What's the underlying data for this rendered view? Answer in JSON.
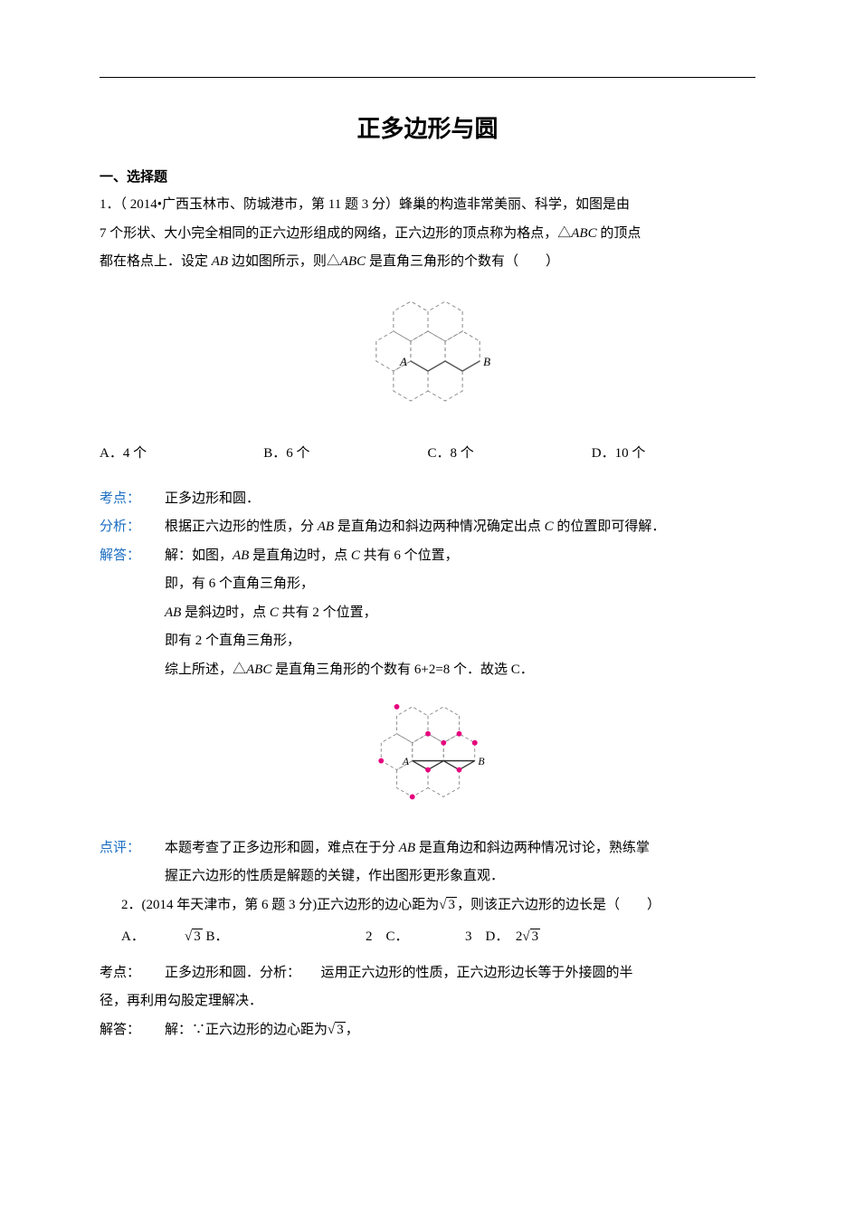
{
  "title": "正多边形与圆",
  "section_head": "一、选择题",
  "q1": {
    "line1": "1．（ 2014•广西玉林市、防城港市，第 11 题 3 分）蜂巢的构造非常美丽、科学，如图是由",
    "line2_a": "7 个形状、大小完全相同的正六边形组成的网络，正六边形的顶点称为格点，△",
    "line2_b": "ABC",
    "line2_c": " 的顶点",
    "line3_a": "都在格点上．设定 ",
    "line3_b": "AB",
    "line3_c": " 边如图所示，则△",
    "line3_d": "ABC",
    "line3_e": " 是直角三角形的个数有（　　）",
    "opts": {
      "A": "A．4 个",
      "B": "B．6 个",
      "C": "C．8 个",
      "D": "D．10 个"
    }
  },
  "q1_sol": {
    "kd_label": "考点：",
    "kd_text": "正多边形和圆．",
    "fx_label": "分析：",
    "fx_a": "根据正六边形的性质，分 ",
    "fx_b": "AB",
    "fx_c": " 是直角边和斜边两种情况确定出点 ",
    "fx_d": "C",
    "fx_e": " 的位置即可得解．",
    "jd_label": "解答：",
    "jd1_a": "解：如图，",
    "jd1_b": "AB",
    "jd1_c": " 是直角边时，点 ",
    "jd1_d": "C",
    "jd1_e": " 共有 6 个位置，",
    "jd2": "即，有 6 个直角三角形，",
    "jd3_a": "AB",
    "jd3_b": " 是斜边时，点 ",
    "jd3_c": "C",
    "jd3_d": " 共有 2 个位置，",
    "jd4": "即有 2 个直角三角形，",
    "jd5_a": "综上所述，△",
    "jd5_b": "ABC",
    "jd5_c": " 是直角三角形的个数有 6+2=8 个．故选 C．",
    "dp_label": "点评：",
    "dp1_a": "本题考查了正多边形和圆，难点在于分 ",
    "dp1_b": "AB",
    "dp1_c": " 是直角边和斜边两种情况讨论，熟练掌",
    "dp2": "握正六边形的性质是解题的关键，作出图形更形象直观．"
  },
  "q2": {
    "line1_a": "2．(2014 年天津市，第 6 题 3 分)正六边形的边心距为",
    "line1_b": "3",
    "line1_c": "，则该正六边形的边长是（　　）",
    "A": "A．",
    "Aval": "3",
    "Apost": " B．",
    "Bval": "2",
    "Bpost": "　C．",
    "Cval": "3",
    "Cpost": "　D．　2",
    "Dval": "3"
  },
  "q2_sol": {
    "kd_label": "考点：",
    "kd_a": "正多边形和圆．分析：　　运用正六边形的性质，正六边形边长等于外接圆的半",
    "kd_b": "径，再利用勾股定理解决．",
    "jd_label": "解答：",
    "jd_a": "解：∵正六边形的边心距为",
    "jd_b": "3",
    "jd_c": "，"
  },
  "fig1": {
    "stroke": "#888888",
    "dash": "4,3",
    "label_A": "A",
    "label_B": "B",
    "solid_stroke": "#555555"
  },
  "fig2": {
    "stroke": "#888888",
    "dash": "4,3",
    "label_A": "A",
    "label_B": "B",
    "dot_fill": "#e6007e",
    "ab_stroke": "#333333"
  }
}
